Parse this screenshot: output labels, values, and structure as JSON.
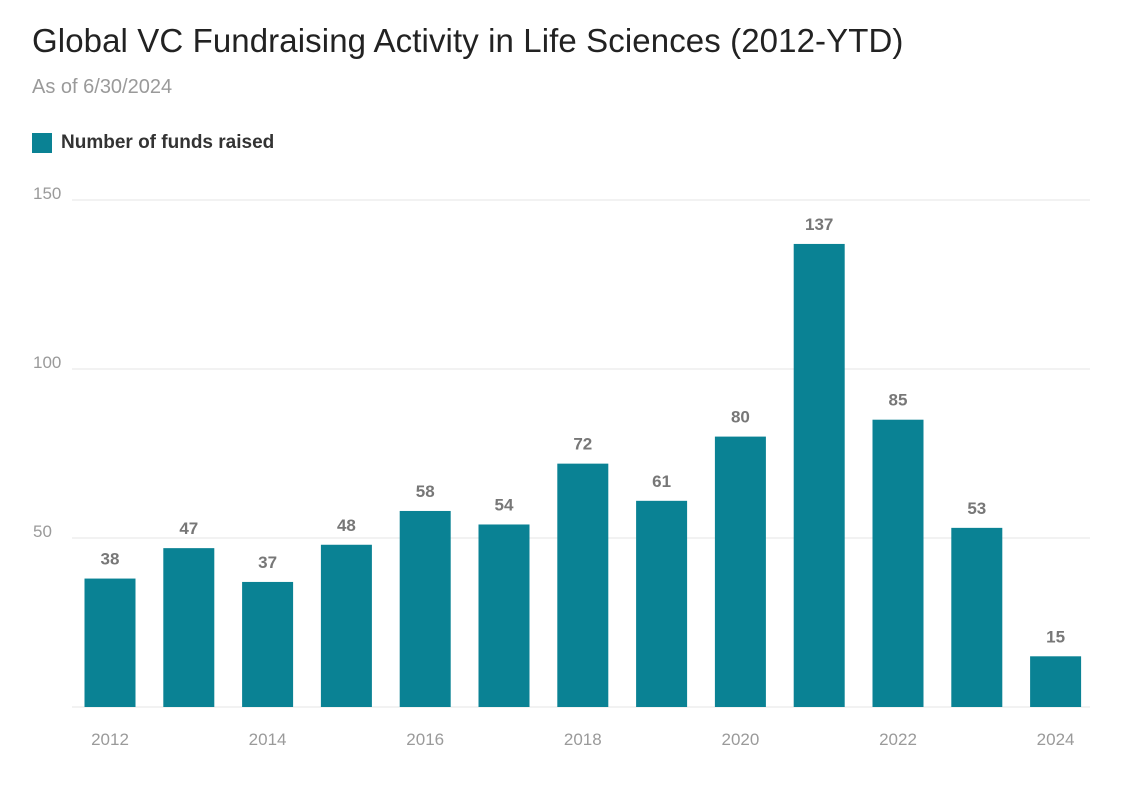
{
  "title": "Global VC Fundraising Activity in Life Sciences (2012-YTD)",
  "subtitle": "As of 6/30/2024",
  "colors": {
    "bar": "#0a8294",
    "grid": "#e6e6e6",
    "tick_text": "#9a9a9a",
    "label_text": "#777777"
  },
  "chart_data": {
    "type": "bar",
    "title": "Global VC Fundraising Activity in Life Sciences (2012-YTD)",
    "subtitle": "As of 6/30/2024",
    "categories": [
      "2012",
      "2013",
      "2014",
      "2015",
      "2016",
      "2017",
      "2018",
      "2019",
      "2020",
      "2021",
      "2022",
      "2023",
      "2024"
    ],
    "x_tick_labels": [
      "2012",
      "2014",
      "2016",
      "2018",
      "2020",
      "2022",
      "2024"
    ],
    "series": [
      {
        "name": "Number of funds raised",
        "values": [
          38,
          47,
          37,
          48,
          58,
          54,
          72,
          61,
          80,
          137,
          85,
          53,
          15
        ]
      }
    ],
    "y_ticks": [
      "50",
      "100",
      "150"
    ],
    "ylim": [
      0,
      150
    ],
    "xlabel": "",
    "ylabel": "",
    "grid": true,
    "data_labels": true,
    "legend_position": "top-left"
  }
}
